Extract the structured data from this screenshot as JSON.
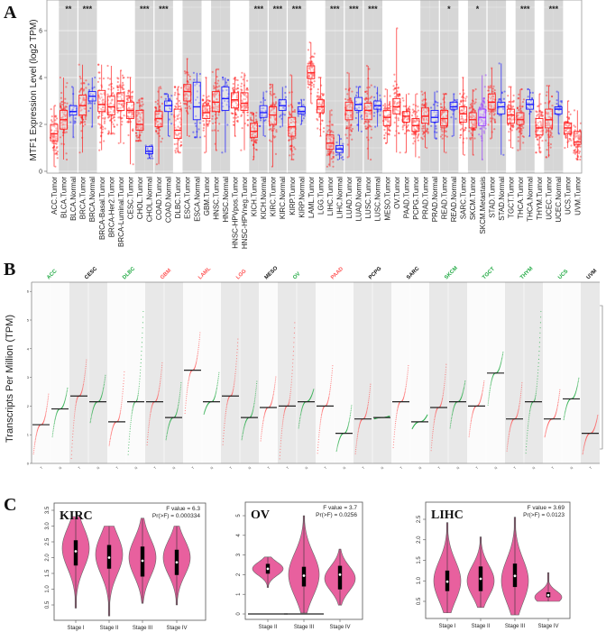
{
  "panels": {
    "a": "A",
    "b": "B",
    "c": "C"
  },
  "colors": {
    "tumor": "#ff2020",
    "normal": "#1a1aff",
    "metastasis": "#9a3cff",
    "violin": "#e8609e",
    "shade": "#d6d6d6",
    "b_green": "#22aa44",
    "b_red": "#ff5555",
    "b_black": "#111111"
  },
  "chart_data": [
    {
      "type": "box",
      "ylabel": "MTF1 Expression Level (log2 TPM)",
      "ylim": [
        0,
        7
      ],
      "yticks": [
        "0",
        "2",
        "4",
        "6"
      ],
      "grid": true,
      "fields": [
        "label",
        "q1",
        "median",
        "q3",
        "min",
        "max"
      ],
      "categories": [
        [
          "ACC.Tumor",
          1.3,
          1.6,
          2.0,
          0.2,
          2.8
        ],
        [
          "BLCA.Tumor",
          1.8,
          2.2,
          2.6,
          0.5,
          4.0
        ],
        [
          "BLCA.Normal",
          2.4,
          2.55,
          2.8,
          1.45,
          3.6
        ],
        [
          "BRCA.Tumor",
          2.4,
          2.8,
          3.25,
          0.8,
          4.55
        ],
        [
          "BRCA.Normal",
          3.0,
          3.2,
          3.4,
          1.9,
          4.0
        ],
        [
          "BRCA-Basal.Tumor",
          2.55,
          2.85,
          3.45,
          0.9,
          4.55
        ],
        [
          "BRCA-Her2.Tumor",
          2.4,
          2.75,
          3.2,
          1.6,
          4.5
        ],
        [
          "BRCA-Luminal.Tumor",
          2.6,
          3.0,
          3.35,
          1.2,
          4.3
        ],
        [
          "CESC.Tumor",
          2.25,
          2.6,
          2.95,
          0.3,
          4.0
        ],
        [
          "CHOL.Tumor",
          1.75,
          2.0,
          2.6,
          1.3,
          3.1
        ],
        [
          "CHOL.Normal",
          0.75,
          0.85,
          1.05,
          0.55,
          1.1
        ],
        [
          "COAD.Tumor",
          1.9,
          2.25,
          2.55,
          0.3,
          3.6
        ],
        [
          "COAD.Normal",
          2.55,
          2.8,
          3.0,
          1.5,
          3.3
        ],
        [
          "DLBC.Tumor",
          1.4,
          1.75,
          2.65,
          0.8,
          3.6
        ],
        [
          "ESCA.Tumor",
          3.0,
          3.4,
          3.7,
          1.5,
          4.8
        ],
        [
          "ESCA.Normal",
          2.2,
          2.75,
          3.8,
          1.45,
          4.2
        ],
        [
          "GBM.Tumor",
          2.25,
          2.5,
          2.8,
          0.8,
          4.0
        ],
        [
          "HNSC.Tumor",
          2.55,
          2.95,
          3.4,
          0.9,
          4.35
        ],
        [
          "HNSC.Normal",
          2.6,
          3.1,
          3.6,
          0.8,
          4.0
        ],
        [
          "HNSC-HPVpos.Tumor",
          2.7,
          3.05,
          3.35,
          1.5,
          4.0
        ],
        [
          "HNSC-HPVneg.Tumor",
          2.6,
          2.9,
          3.35,
          0.9,
          4.2
        ],
        [
          "KICH.Tumor",
          1.45,
          1.7,
          2.05,
          0.5,
          2.5
        ],
        [
          "KICH.Normal",
          2.3,
          2.5,
          2.8,
          1.5,
          3.4
        ],
        [
          "KIRC.Tumor",
          2.0,
          2.4,
          2.75,
          0.2,
          3.7
        ],
        [
          "KIRC.Normal",
          2.6,
          2.8,
          3.05,
          1.9,
          3.6
        ],
        [
          "KIRP.Tumor",
          1.5,
          1.9,
          2.3,
          0.5,
          4.1
        ],
        [
          "KIRP.Normal",
          2.45,
          2.55,
          2.75,
          2.0,
          3.05
        ],
        [
          "LAML.Tumor",
          3.95,
          4.2,
          4.5,
          2.9,
          5.5
        ],
        [
          "LGG.Tumor",
          2.5,
          2.75,
          3.05,
          1.5,
          4.0
        ],
        [
          "LIHC.Tumor",
          0.95,
          1.2,
          1.55,
          0.2,
          2.6
        ],
        [
          "LIHC.Normal",
          0.8,
          0.95,
          1.1,
          0.5,
          1.55
        ],
        [
          "LUAD.Tumor",
          2.2,
          2.6,
          2.95,
          0.6,
          4.2
        ],
        [
          "LUAD.Normal",
          2.6,
          2.85,
          3.15,
          1.7,
          3.6
        ],
        [
          "LUSC.Tumor",
          2.2,
          2.6,
          2.9,
          0.5,
          4.5
        ],
        [
          "LUSC.Normal",
          2.65,
          2.8,
          3.0,
          1.9,
          3.6
        ],
        [
          "MESO.Tumor",
          1.95,
          2.3,
          2.6,
          1.2,
          3.5
        ],
        [
          "OV.Tumor",
          2.45,
          2.75,
          3.1,
          0.8,
          6.1
        ],
        [
          "PAAD.Tumor",
          2.1,
          2.35,
          2.55,
          0.8,
          3.3
        ],
        [
          "PCPG.Tumor",
          1.7,
          1.95,
          2.25,
          0.6,
          3.3
        ],
        [
          "PRAD.Tumor",
          2.05,
          2.35,
          2.7,
          1.0,
          3.4
        ],
        [
          "PRAD.Normal",
          2.1,
          2.3,
          2.6,
          1.4,
          3.4
        ],
        [
          "READ.Tumor",
          1.95,
          2.25,
          2.6,
          0.8,
          3.3
        ],
        [
          "READ.Normal",
          2.65,
          2.75,
          2.95,
          1.5,
          3.3
        ],
        [
          "SARC.Tumor",
          2.1,
          2.45,
          2.75,
          0.7,
          4.0
        ],
        [
          "SKCM.Tumor",
          1.85,
          2.2,
          2.5,
          0.7,
          3.5
        ],
        [
          "SKCM.Metastasis",
          1.95,
          2.3,
          2.65,
          0.5,
          4.1
        ],
        [
          "STAD.Tumor",
          2.65,
          2.95,
          3.3,
          1.4,
          4.4
        ],
        [
          "STAD.Normal",
          2.45,
          2.75,
          2.95,
          0.7,
          4.6
        ],
        [
          "TGCT.Tumor",
          2.05,
          2.4,
          2.65,
          1.0,
          3.6
        ],
        [
          "THCA.Tumor",
          2.0,
          2.2,
          2.5,
          0.9,
          3.5
        ],
        [
          "THCA.Normal",
          2.65,
          2.85,
          3.05,
          1.5,
          3.5
        ],
        [
          "THYM.Tumor",
          1.55,
          1.85,
          2.25,
          0.8,
          3.3
        ],
        [
          "UCEC.Tumor",
          1.85,
          2.2,
          2.65,
          0.6,
          3.65
        ],
        [
          "UCEC.Normal",
          2.45,
          2.65,
          2.75,
          1.6,
          3.4
        ],
        [
          "UCS.Tumor",
          1.6,
          1.85,
          2.05,
          1.0,
          3.0
        ],
        [
          "UVM.Tumor",
          1.15,
          1.25,
          1.7,
          0.5,
          2.6
        ]
      ],
      "significance": {
        "BLCA": "**",
        "BRCA": "***",
        "CHOL": "***",
        "COAD": "***",
        "KICH": "***",
        "KIRC": "***",
        "KIRP": "***",
        "LIHC": "***",
        "LUAD": "***",
        "LUSC": "***",
        "READ": "*",
        "SKCM": "*",
        "THCA": "***",
        "UCEC": "***"
      }
    },
    {
      "type": "scatter",
      "ylabel": "Transcripts Per Million (TPM)",
      "ylim": [
        0,
        6
      ],
      "yticks": [
        "0",
        "1",
        "2",
        "3",
        "4",
        "5",
        "6"
      ],
      "groups": [
        {
          "name": "ACC",
          "color": "green",
          "cols": [
            {
              "t": "T",
              "median": 1.35,
              "min": 0.3,
              "max": 2.45
            },
            {
              "t": "N",
              "median": 1.9,
              "min": 0.9,
              "max": 2.65
            }
          ]
        },
        {
          "name": "CESC",
          "color": "black",
          "cols": [
            {
              "t": "T",
              "median": 2.35,
              "min": 0.1,
              "max": 3.65
            },
            {
              "t": "N",
              "median": 2.15,
              "min": 1.4,
              "max": 3.1
            }
          ]
        },
        {
          "name": "DLBC",
          "color": "green",
          "cols": [
            {
              "t": "T",
              "median": 1.45,
              "min": 0.6,
              "max": 3.25
            },
            {
              "t": "N",
              "median": 2.15,
              "min": 0.25,
              "max": 5.4
            }
          ]
        },
        {
          "name": "GBM",
          "color": "red",
          "cols": [
            {
              "t": "T",
              "median": 2.15,
              "min": 0.6,
              "max": 3.55
            },
            {
              "t": "N",
              "median": 1.6,
              "min": 0.8,
              "max": 2.85
            }
          ]
        },
        {
          "name": "LAML",
          "color": "red",
          "cols": [
            {
              "t": "T",
              "median": 3.25,
              "min": 1.7,
              "max": 4.6
            },
            {
              "t": "N",
              "median": 2.15,
              "min": 1.7,
              "max": 3.2
            }
          ]
        },
        {
          "name": "LGG",
          "color": "red",
          "cols": [
            {
              "t": "T",
              "median": 2.35,
              "min": 0.6,
              "max": 4.4
            },
            {
              "t": "N",
              "median": 1.6,
              "min": 0.8,
              "max": 2.9
            }
          ]
        },
        {
          "name": "MESO",
          "color": "black",
          "cols": [
            {
              "t": "T",
              "median": 1.95,
              "min": 0.75,
              "max": 3.05
            }
          ]
        },
        {
          "name": "OV",
          "color": "green",
          "cols": [
            {
              "t": "T",
              "median": 2.0,
              "min": 0.1,
              "max": 5.0
            },
            {
              "t": "N",
              "median": 2.15,
              "min": 1.2,
              "max": 2.6
            }
          ]
        },
        {
          "name": "PAAD",
          "color": "red",
          "cols": [
            {
              "t": "T",
              "median": 2.0,
              "min": 0.3,
              "max": 3.45
            },
            {
              "t": "N",
              "median": 1.05,
              "min": 0.4,
              "max": 2.05
            }
          ]
        },
        {
          "name": "PCPG",
          "color": "black",
          "cols": [
            {
              "t": "T",
              "median": 1.55,
              "min": 0.3,
              "max": 2.8
            },
            {
              "t": "N",
              "median": 1.6,
              "min": 1.55,
              "max": 1.65
            }
          ]
        },
        {
          "name": "SARC",
          "color": "black",
          "cols": [
            {
              "t": "T",
              "median": 2.15,
              "min": 0.5,
              "max": 3.45
            },
            {
              "t": "N",
              "median": 1.45,
              "min": 1.2,
              "max": 1.7
            }
          ]
        },
        {
          "name": "SKCM",
          "color": "green",
          "cols": [
            {
              "t": "T",
              "median": 1.95,
              "min": 0.4,
              "max": 3.5
            },
            {
              "t": "N",
              "median": 2.15,
              "min": 1.2,
              "max": 2.9
            }
          ]
        },
        {
          "name": "TGCT",
          "color": "green",
          "cols": [
            {
              "t": "T",
              "median": 2.0,
              "min": 0.9,
              "max": 2.9
            },
            {
              "t": "N",
              "median": 3.15,
              "min": 2.0,
              "max": 3.9
            }
          ]
        },
        {
          "name": "THYM",
          "color": "green",
          "cols": [
            {
              "t": "T",
              "median": 1.55,
              "min": 0.4,
              "max": 2.85
            },
            {
              "t": "N",
              "median": 2.15,
              "min": 0.3,
              "max": 5.4
            }
          ]
        },
        {
          "name": "UCS",
          "color": "green",
          "cols": [
            {
              "t": "T",
              "median": 1.55,
              "min": 0.9,
              "max": 2.6
            },
            {
              "t": "N",
              "median": 2.25,
              "min": 1.5,
              "max": 3.0
            }
          ]
        },
        {
          "name": "UVM",
          "color": "black",
          "cols": [
            {
              "t": "T",
              "median": 1.05,
              "min": 0.3,
              "max": 1.7
            }
          ]
        }
      ]
    },
    {
      "type": "violin",
      "title": "KIRC",
      "f_text": "F value = 6.3",
      "p_text": "Pr(>F) = 0.000334",
      "ylim": [
        0,
        3.6
      ],
      "yticks": [
        "0.5",
        "1.0",
        "1.5",
        "2.0",
        "2.5",
        "3.0",
        "3.5"
      ],
      "stages": [
        {
          "label": "Stage I",
          "min": 0.4,
          "max": 3.3,
          "q1": 1.75,
          "median": 2.2,
          "q3": 2.55,
          "mode": 2.3
        },
        {
          "label": "Stage II",
          "min": 0.15,
          "max": 3.0,
          "q1": 1.65,
          "median": 2.0,
          "q3": 2.4,
          "mode": 2.1
        },
        {
          "label": "Stage III",
          "min": 0.55,
          "max": 3.25,
          "q1": 1.4,
          "median": 1.9,
          "q3": 2.35,
          "mode": 2.0
        },
        {
          "label": "Stage IV",
          "min": 0.5,
          "max": 3.0,
          "q1": 1.45,
          "median": 1.85,
          "q3": 2.25,
          "mode": 2.0
        }
      ]
    },
    {
      "type": "violin",
      "title": "OV",
      "f_text": "F value = 3.7",
      "p_text": "Pr(>F) = 0.0256",
      "ylim": [
        -0.2,
        5.4
      ],
      "yticks": [
        "0",
        "1",
        "2",
        "3",
        "4",
        "5"
      ],
      "stages": [
        {
          "label": "Stage II",
          "min": 1.35,
          "max": 2.9,
          "q1": 2.05,
          "median": 2.3,
          "q3": 2.55,
          "mode": 2.3,
          "zero_values": true
        },
        {
          "label": "Stage III",
          "min": 0.05,
          "max": 5.0,
          "q1": 1.4,
          "median": 1.95,
          "q3": 2.4,
          "mode": 2.0,
          "zero_values": true
        },
        {
          "label": "Stage IV",
          "min": 0.45,
          "max": 3.3,
          "q1": 1.25,
          "median": 2.0,
          "q3": 2.45,
          "mode": 1.8
        }
      ]
    },
    {
      "type": "violin",
      "title": "LIHC",
      "f_text": "F value = 3.69",
      "p_text": "Pr(>F) = 0.0123",
      "ylim": [
        0.1,
        2.8
      ],
      "yticks": [
        "0.5",
        "1.0",
        "1.5",
        "2.0",
        "2.5"
      ],
      "stages": [
        {
          "label": "Stage I",
          "min": 0.22,
          "max": 2.42,
          "q1": 0.75,
          "median": 0.98,
          "q3": 1.25,
          "mode": 1.0
        },
        {
          "label": "Stage II",
          "min": 0.35,
          "max": 2.07,
          "q1": 0.75,
          "median": 1.05,
          "q3": 1.35,
          "mode": 1.0
        },
        {
          "label": "Stage III",
          "min": 0.17,
          "max": 2.55,
          "q1": 0.85,
          "median": 1.12,
          "q3": 1.42,
          "mode": 1.0
        },
        {
          "label": "Stage IV",
          "min": 0.5,
          "max": 1.2,
          "q1": 0.6,
          "median": 0.65,
          "q3": 0.72,
          "mode": 0.6
        }
      ]
    }
  ]
}
